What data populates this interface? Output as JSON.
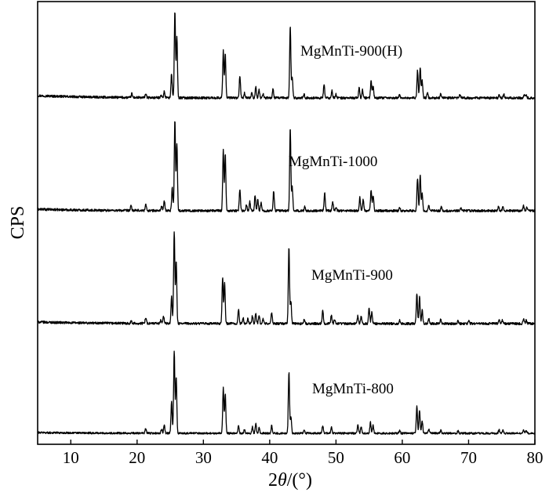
{
  "chart_data": {
    "type": "line",
    "title": "",
    "xlabel_prefix": "2",
    "xlabel_symbol": "θ",
    "xlabel_suffix": "/(°)",
    "ylabel": "CPS",
    "xlim": [
      5,
      80
    ],
    "xticks": [
      10,
      20,
      30,
      40,
      50,
      60,
      70,
      80
    ],
    "grid": false,
    "legend": "none",
    "series": [
      {
        "name": "MgMnTi-900(H)",
        "baseline": 125,
        "drift": 3,
        "noise": 1.5,
        "peaks": [
          [
            19.2,
            5
          ],
          [
            21.3,
            5
          ],
          [
            23.6,
            4
          ],
          [
            24.1,
            8
          ],
          [
            25.2,
            31
          ],
          [
            25.7,
            110
          ],
          [
            26.0,
            78
          ],
          [
            33.0,
            60
          ],
          [
            33.3,
            56
          ],
          [
            35.5,
            28
          ],
          [
            36.2,
            6
          ],
          [
            37.3,
            8
          ],
          [
            37.9,
            14
          ],
          [
            38.4,
            10
          ],
          [
            39.0,
            5
          ],
          [
            40.5,
            11
          ],
          [
            43.1,
            92
          ],
          [
            43.4,
            27
          ],
          [
            45.2,
            4
          ],
          [
            48.2,
            17
          ],
          [
            49.4,
            9
          ],
          [
            50.0,
            5
          ],
          [
            53.5,
            13
          ],
          [
            54.0,
            10
          ],
          [
            55.3,
            22
          ],
          [
            55.6,
            16
          ],
          [
            59.6,
            4
          ],
          [
            62.3,
            35
          ],
          [
            62.7,
            40
          ],
          [
            63.0,
            22
          ],
          [
            63.8,
            6
          ],
          [
            65.8,
            5
          ],
          [
            68.7,
            4
          ],
          [
            74.6,
            4
          ],
          [
            75.3,
            5
          ],
          [
            78.4,
            4
          ],
          [
            78.7,
            3
          ]
        ]
      },
      {
        "name": "MgMnTi-1000",
        "baseline": 269,
        "drift": 2,
        "noise": 1.5,
        "peaks": [
          [
            19.1,
            6
          ],
          [
            21.3,
            8
          ],
          [
            23.7,
            6
          ],
          [
            24.1,
            12
          ],
          [
            25.3,
            30
          ],
          [
            25.7,
            115
          ],
          [
            26.0,
            86
          ],
          [
            33.0,
            78
          ],
          [
            33.3,
            72
          ],
          [
            35.5,
            27
          ],
          [
            36.5,
            8
          ],
          [
            37.0,
            12
          ],
          [
            37.8,
            20
          ],
          [
            38.2,
            14
          ],
          [
            38.7,
            10
          ],
          [
            40.6,
            25
          ],
          [
            43.1,
            105
          ],
          [
            43.4,
            30
          ],
          [
            45.3,
            5
          ],
          [
            48.3,
            22
          ],
          [
            49.5,
            12
          ],
          [
            50.0,
            5
          ],
          [
            53.6,
            17
          ],
          [
            54.1,
            14
          ],
          [
            55.3,
            27
          ],
          [
            55.6,
            20
          ],
          [
            59.6,
            4
          ],
          [
            62.3,
            42
          ],
          [
            62.7,
            46
          ],
          [
            63.0,
            22
          ],
          [
            64.0,
            6
          ],
          [
            65.9,
            5
          ],
          [
            68.8,
            4
          ],
          [
            74.5,
            5
          ],
          [
            75.2,
            6
          ],
          [
            78.3,
            7
          ],
          [
            78.8,
            4
          ]
        ]
      },
      {
        "name": "MgMnTi-900",
        "baseline": 413,
        "drift": 2,
        "noise": 1.5,
        "peaks": [
          [
            19.1,
            3
          ],
          [
            21.3,
            8
          ],
          [
            23.6,
            5
          ],
          [
            24.0,
            9
          ],
          [
            25.2,
            34
          ],
          [
            25.6,
            118
          ],
          [
            25.9,
            80
          ],
          [
            32.9,
            58
          ],
          [
            33.2,
            52
          ],
          [
            35.3,
            18
          ],
          [
            36.0,
            7
          ],
          [
            36.7,
            6
          ],
          [
            37.4,
            10
          ],
          [
            37.9,
            13
          ],
          [
            38.4,
            10
          ],
          [
            39.0,
            6
          ],
          [
            40.3,
            14
          ],
          [
            42.9,
            97
          ],
          [
            43.2,
            28
          ],
          [
            45.2,
            5
          ],
          [
            48.0,
            18
          ],
          [
            49.3,
            10
          ],
          [
            49.8,
            5
          ],
          [
            53.3,
            10
          ],
          [
            53.8,
            9
          ],
          [
            55.0,
            20
          ],
          [
            55.4,
            14
          ],
          [
            59.6,
            4
          ],
          [
            62.2,
            38
          ],
          [
            62.6,
            34
          ],
          [
            63.0,
            18
          ],
          [
            64.0,
            6
          ],
          [
            65.8,
            5
          ],
          [
            68.4,
            4
          ],
          [
            70.0,
            4
          ],
          [
            74.6,
            6
          ],
          [
            75.1,
            5
          ],
          [
            78.3,
            6
          ],
          [
            78.7,
            4
          ]
        ]
      },
      {
        "name": "MgMnTi-800",
        "baseline": 553,
        "drift": 1,
        "noise": 1.2,
        "peaks": [
          [
            21.3,
            6
          ],
          [
            23.7,
            5
          ],
          [
            24.1,
            10
          ],
          [
            25.2,
            40
          ],
          [
            25.6,
            105
          ],
          [
            25.9,
            72
          ],
          [
            33.0,
            58
          ],
          [
            33.3,
            50
          ],
          [
            35.3,
            10
          ],
          [
            36.2,
            5
          ],
          [
            37.4,
            8
          ],
          [
            37.9,
            12
          ],
          [
            38.4,
            7
          ],
          [
            40.3,
            10
          ],
          [
            42.9,
            78
          ],
          [
            43.2,
            22
          ],
          [
            45.2,
            4
          ],
          [
            48.0,
            10
          ],
          [
            49.3,
            8
          ],
          [
            53.3,
            11
          ],
          [
            53.8,
            8
          ],
          [
            55.2,
            14
          ],
          [
            55.6,
            10
          ],
          [
            59.6,
            4
          ],
          [
            62.2,
            34
          ],
          [
            62.6,
            30
          ],
          [
            63.0,
            16
          ],
          [
            64.0,
            5
          ],
          [
            65.8,
            4
          ],
          [
            68.4,
            3
          ],
          [
            74.6,
            5
          ],
          [
            75.2,
            4
          ],
          [
            78.3,
            5
          ],
          [
            78.7,
            3
          ]
        ]
      }
    ]
  }
}
